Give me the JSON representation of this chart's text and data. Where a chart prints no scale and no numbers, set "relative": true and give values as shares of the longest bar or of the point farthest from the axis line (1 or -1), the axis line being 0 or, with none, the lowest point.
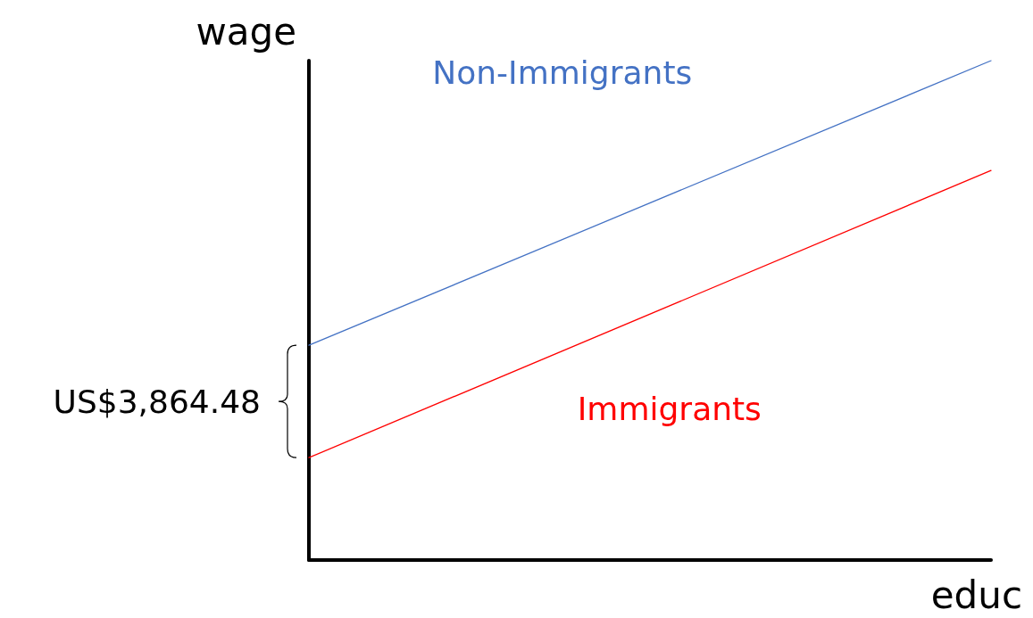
{
  "chart_data": {
    "type": "line",
    "relative": true,
    "xlabel": "educ",
    "ylabel": "wage",
    "categories": [
      null,
      null
    ],
    "series": [
      {
        "name": "Non-Immigrants",
        "color": "#4472c4",
        "values": [
          0.43,
          1
        ]
      },
      {
        "name": "Immigrants",
        "color": "#ff0000",
        "values": [
          0.205,
          0.78
        ]
      }
    ],
    "annotations": [
      "US$3,864.48"
    ],
    "legend": false,
    "grid": false,
    "marker": "none"
  }
}
